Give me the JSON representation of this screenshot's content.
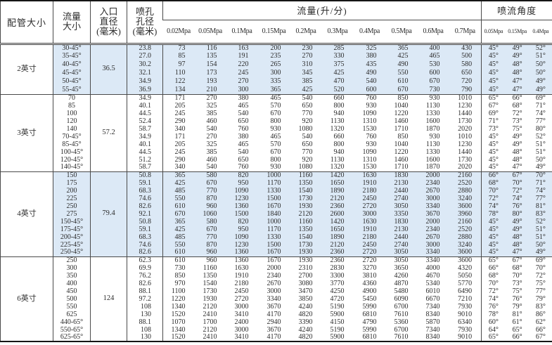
{
  "colors": {
    "highlight": "#dce9f6",
    "border": "#4a4a4a"
  },
  "table": {
    "header": {
      "pipe_size": "配管大小",
      "flow_size": "流量\n大小",
      "inlet_diameter": "入口\n直径\n(毫米)",
      "orifice_diameter": "喷孔\n孔径\n(毫米)",
      "flow_group": "流量(升/分)",
      "angle_group": "喷流角度",
      "flow_pressures": [
        "0.02Mpa",
        "0.05Mpa",
        "0.1Mpa",
        "0.15Mpa",
        "0.2Mpa",
        "0.3Mpa",
        "0.4Mpa",
        "0.5Mpa",
        "0.6Mpa",
        "0.7Mpa"
      ],
      "angle_pressures": [
        "0.05Mpa",
        "0.15Mpa",
        "0.4Mpa"
      ]
    },
    "groups": [
      {
        "pipe_size": "2英寸",
        "inlet_diameter": "36.5",
        "highlighted": true,
        "rows": [
          {
            "flow": "30-45°",
            "orifice": "23.8",
            "flows": [
              73,
              116,
              163,
              200,
              230,
              285,
              325,
              365,
              400,
              430
            ],
            "angles": [
              "45°",
              "49°",
              "52°"
            ]
          },
          {
            "flow": "35-45°",
            "orifice": "27.0",
            "flows": [
              85,
              135,
              191,
              235,
              270,
              330,
              380,
              425,
              465,
              500
            ],
            "angles": [
              "45°",
              "49°",
              "51°"
            ]
          },
          {
            "flow": "40-45°",
            "orifice": "30.2",
            "flows": [
              97,
              154,
              220,
              265,
              310,
              375,
              435,
              490,
              530,
              580
            ],
            "angles": [
              "45°",
              "48°",
              "50°"
            ]
          },
          {
            "flow": "45-45°",
            "orifice": "32.1",
            "flows": [
              110,
              173,
              245,
              300,
              345,
              425,
              490,
              550,
              600,
              650
            ],
            "angles": [
              "45°",
              "48°",
              "50°"
            ]
          },
          {
            "flow": "50-45°",
            "orifice": "34.9",
            "flows": [
              122,
              193,
              270,
              335,
              385,
              470,
              540,
              610,
              670,
              720
            ],
            "angles": [
              "45°",
              "47°",
              "49°"
            ]
          },
          {
            "flow": "55-45°",
            "orifice": "36.9",
            "flows": [
              134,
              210,
              300,
              365,
              425,
              520,
              600,
              670,
              730,
              790
            ],
            "angles": [
              "45°",
              "47°",
              "49°"
            ]
          }
        ]
      },
      {
        "pipe_size": "3英寸",
        "inlet_diameter": "57.2",
        "highlighted": false,
        "rows": [
          {
            "flow": "70",
            "orifice": "34.9",
            "flows": [
              171,
              270,
              380,
              465,
              540,
              660,
              760,
              850,
              930,
              1010
            ],
            "angles": [
              "65°",
              "66°",
              "69°"
            ]
          },
          {
            "flow": "85",
            "orifice": "40.1",
            "flows": [
              205,
              325,
              465,
              570,
              650,
              800,
              930,
              1040,
              1130,
              1230
            ],
            "angles": [
              "67°",
              "68°",
              "71°"
            ]
          },
          {
            "flow": "100",
            "orifice": "44.5",
            "flows": [
              245,
              385,
              540,
              670,
              770,
              940,
              1090,
              1220,
              1330,
              1440
            ],
            "angles": [
              "69°",
              "72°",
              "74°"
            ]
          },
          {
            "flow": "120",
            "orifice": "52.4",
            "flows": [
              290,
              460,
              650,
              800,
              920,
              1130,
              1310,
              1460,
              1600,
              1730
            ],
            "angles": [
              "71°",
              "73°",
              "77°"
            ]
          },
          {
            "flow": "140",
            "orifice": "58.7",
            "flows": [
              340,
              540,
              760,
              930,
              1080,
              1320,
              1530,
              1710,
              1870,
              2020
            ],
            "angles": [
              "73°",
              "75°",
              "80°"
            ]
          },
          {
            "flow": "70-45°",
            "orifice": "34.9",
            "flows": [
              171,
              270,
              380,
              465,
              540,
              660,
              760,
              850,
              930,
              1010
            ],
            "angles": [
              "45°",
              "49°",
              "52°"
            ]
          },
          {
            "flow": "85-45°",
            "orifice": "40.1",
            "flows": [
              205,
              325,
              465,
              570,
              650,
              800,
              930,
              1040,
              1130,
              1230
            ],
            "angles": [
              "45°",
              "49°",
              "51°"
            ]
          },
          {
            "flow": "100-45°",
            "orifice": "44.5",
            "flows": [
              245,
              385,
              540,
              670,
              770,
              940,
              1090,
              1220,
              1330,
              1440
            ],
            "angles": [
              "45°",
              "48°",
              "51°"
            ]
          },
          {
            "flow": "120-45°",
            "orifice": "51.2",
            "flows": [
              290,
              460,
              650,
              800,
              920,
              1130,
              1310,
              1460,
              1600,
              1730
            ],
            "angles": [
              "45°",
              "48°",
              "50°"
            ]
          },
          {
            "flow": "140-45°",
            "orifice": "58.7",
            "flows": [
              340,
              540,
              760,
              930,
              1080,
              1320,
              1530,
              1710,
              1870,
              2020
            ],
            "angles": [
              "45°",
              "47°",
              "49°"
            ]
          }
        ]
      },
      {
        "pipe_size": "4英寸",
        "inlet_diameter": "79.4",
        "highlighted": true,
        "rows": [
          {
            "flow": "150",
            "orifice": "50.8",
            "flows": [
              365,
              580,
              820,
              1000,
              1160,
              1420,
              1630,
              1830,
              2000,
              2160
            ],
            "angles": [
              "66°",
              "67°",
              "70°"
            ]
          },
          {
            "flow": "175",
            "orifice": "59.1",
            "flows": [
              425,
              670,
              950,
              1170,
              1350,
              1650,
              1910,
              2130,
              2340,
              2520
            ],
            "angles": [
              "68°",
              "70°",
              "71°"
            ]
          },
          {
            "flow": "200",
            "orifice": "68.3",
            "flows": [
              485,
              770,
              1090,
              1330,
              1540,
              1890,
              2180,
              2440,
              2670,
              2880
            ],
            "angles": [
              "70°",
              "72°",
              "74°"
            ]
          },
          {
            "flow": "225",
            "orifice": "74.6",
            "flows": [
              550,
              870,
              1230,
              1500,
              1730,
              2120,
              2450,
              2740,
              3000,
              3240
            ],
            "angles": [
              "72°",
              "74°",
              "77°"
            ]
          },
          {
            "flow": "250",
            "orifice": "82.6",
            "flows": [
              610,
              960,
              1360,
              1670,
              1930,
              2360,
              2720,
              3050,
              3340,
              3600
            ],
            "angles": [
              "74°",
              "76°",
              "81°"
            ]
          },
          {
            "flow": "275",
            "orifice": "92.1",
            "flows": [
              670,
              1060,
              1500,
              1840,
              2120,
              2600,
              3000,
              3350,
              3670,
              3960
            ],
            "angles": [
              "78°",
              "80°",
              "83°"
            ]
          },
          {
            "flow": "150-45°",
            "orifice": "50.8",
            "flows": [
              365,
              580,
              820,
              1000,
              1160,
              1420,
              1630,
              1830,
              2000,
              2160
            ],
            "angles": [
              "45°",
              "49°",
              "52°"
            ]
          },
          {
            "flow": "175-45°",
            "orifice": "59.1",
            "flows": [
              425,
              670,
              950,
              1170,
              1350,
              1650,
              1910,
              2130,
              2340,
              2520
            ],
            "angles": [
              "45°",
              "49°",
              "51°"
            ]
          },
          {
            "flow": "200-45°",
            "orifice": "68.3",
            "flows": [
              485,
              770,
              1090,
              1330,
              1540,
              1890,
              2180,
              2440,
              2670,
              2880
            ],
            "angles": [
              "45°",
              "48°",
              "51°"
            ]
          },
          {
            "flow": "225-45°",
            "orifice": "74.6",
            "flows": [
              550,
              870,
              1230,
              1500,
              1730,
              2120,
              2450,
              2740,
              3000,
              3240
            ],
            "angles": [
              "45°",
              "48°",
              "50°"
            ]
          },
          {
            "flow": "250-45°",
            "orifice": "82.6",
            "flows": [
              610,
              960,
              1360,
              1670,
              1930,
              2360,
              2720,
              3050,
              3340,
              3600
            ],
            "angles": [
              "45°",
              "47°",
              "49°"
            ]
          }
        ]
      },
      {
        "pipe_size": "6英寸",
        "inlet_diameter": "124",
        "highlighted": false,
        "rows": [
          {
            "flow": "250",
            "orifice": "62.3",
            "flows": [
              610,
              960,
              1360,
              1670,
              1930,
              2360,
              2720,
              3050,
              3340,
              3600
            ],
            "angles": [
              "65°",
              "67°",
              "69°"
            ]
          },
          {
            "flow": "300",
            "orifice": "69.9",
            "flows": [
              730,
              1160,
              1630,
              2000,
              2310,
              2830,
              3270,
              3650,
              4000,
              4320
            ],
            "angles": [
              "66°",
              "68°",
              "70°"
            ]
          },
          {
            "flow": "350",
            "orifice": "76.2",
            "flows": [
              850,
              1350,
              1910,
              2340,
              2700,
              3300,
              3810,
              4260,
              4670,
              5050
            ],
            "angles": [
              "68°",
              "70°",
              "72°"
            ]
          },
          {
            "flow": "400",
            "orifice": "82.6",
            "flows": [
              970,
              1540,
              2180,
              2670,
              3080,
              3770,
              4360,
              4870,
              5340,
              5770
            ],
            "angles": [
              "70°",
              "73°",
              "75°"
            ]
          },
          {
            "flow": "450",
            "orifice": "88.1",
            "flows": [
              1100,
              1730,
              2450,
              3000,
              3470,
              4250,
              4900,
              5480,
              6010,
              6490
            ],
            "angles": [
              "72°",
              "75°",
              "77°"
            ]
          },
          {
            "flow": "500",
            "orifice": "97.2",
            "flows": [
              1220,
              1930,
              2720,
              3340,
              3850,
              4720,
              5450,
              6090,
              6670,
              7210
            ],
            "angles": [
              "74°",
              "76°",
              "79°"
            ]
          },
          {
            "flow": "550",
            "orifice": "108",
            "flows": [
              1340,
              2120,
              3000,
              3670,
              4240,
              5190,
              5990,
              6700,
              7340,
              7930
            ],
            "angles": [
              "76°",
              "79°",
              "83°"
            ]
          },
          {
            "flow": "625",
            "orifice": "130",
            "flows": [
              1520,
              2410,
              3410,
              4170,
              4820,
              5900,
              6810,
              7610,
              8340,
              9010
            ],
            "angles": [
              "78°",
              "81°",
              "86°"
            ]
          },
          {
            "flow": "440-65°",
            "orifice": "88.1",
            "flows": [
              1070,
              1700,
              2400,
              2940,
              3390,
              4150,
              4790,
              5360,
              5870,
              6340
            ],
            "angles": [
              "60°",
              "61°",
              "62°"
            ]
          },
          {
            "flow": "550-65°",
            "orifice": "108",
            "flows": [
              1340,
              2120,
              3000,
              3670,
              4240,
              5190,
              5990,
              6700,
              7340,
              7930
            ],
            "angles": [
              "64°",
              "65°",
              "66°"
            ]
          },
          {
            "flow": "625-65°",
            "orifice": "130",
            "flows": [
              1520,
              2410,
              3410,
              4170,
              4820,
              5900,
              6810,
              7610,
              8340,
              9010
            ],
            "angles": [
              "65°",
              "66°",
              "67°"
            ]
          }
        ]
      }
    ]
  }
}
